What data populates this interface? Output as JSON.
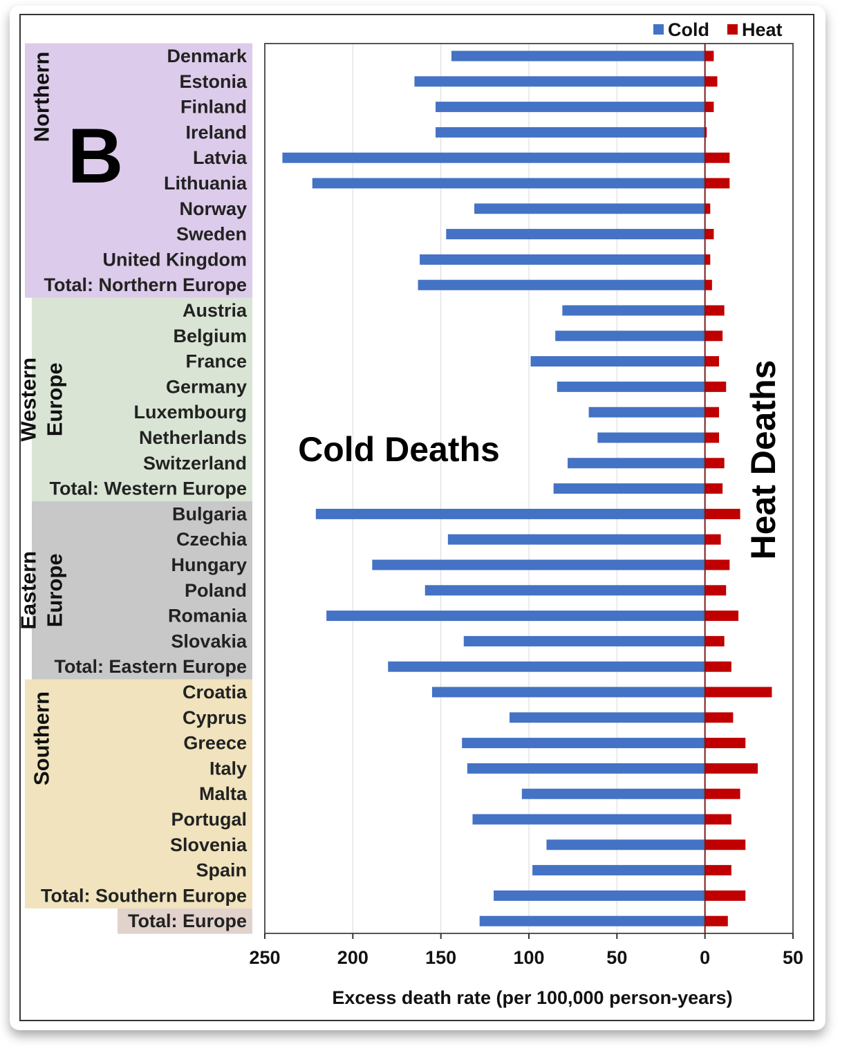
{
  "panel_letter": "B",
  "annotations": {
    "cold": "Cold Deaths",
    "heat": "Heat Deaths"
  },
  "legend": [
    {
      "name": "Cold",
      "color": "#4472c4"
    },
    {
      "name": "Heat",
      "color": "#c00000"
    }
  ],
  "chart_data": {
    "type": "bar",
    "orientation": "horizontal",
    "xlabel": "Excess death rate (per 100,000 person-years)",
    "x_ticks": [
      "250",
      "200",
      "150",
      "100",
      "50",
      "0",
      "50"
    ],
    "xlim": [
      -250,
      50
    ],
    "x_axis_reversed_left_of_zero": true,
    "grid": true,
    "legend_position": "top-right",
    "categories": [
      "Denmark",
      "Estonia",
      "Finland",
      "Ireland",
      "Latvia",
      "Lithuania",
      "Norway",
      "Sweden",
      "United Kingdom",
      "Total: Northern Europe",
      "Austria",
      "Belgium",
      "France",
      "Germany",
      "Luxembourg",
      "Netherlands",
      "Switzerland",
      "Total: Western Europe",
      "Bulgaria",
      "Czechia",
      "Hungary",
      "Poland",
      "Romania",
      "Slovakia",
      "Total: Eastern Europe",
      "Croatia",
      "Cyprus",
      "Greece",
      "Italy",
      "Malta",
      "Portugal",
      "Slovenia",
      "Spain",
      "Total: Southern Europe",
      "Total: Europe"
    ],
    "series": [
      {
        "name": "Cold",
        "color": "#4472c4",
        "values": [
          144,
          165,
          153,
          153,
          240,
          223,
          131,
          147,
          162,
          163,
          81,
          85,
          99,
          84,
          66,
          61,
          78,
          86,
          221,
          146,
          189,
          159,
          215,
          137,
          180,
          155,
          111,
          138,
          135,
          104,
          132,
          90,
          98,
          120,
          128
        ]
      },
      {
        "name": "Heat",
        "color": "#c00000",
        "values": [
          5,
          7,
          5,
          1,
          14,
          14,
          3,
          5,
          3,
          4,
          11,
          10,
          8,
          12,
          8,
          8,
          11,
          10,
          20,
          9,
          14,
          12,
          19,
          11,
          15,
          38,
          16,
          23,
          30,
          20,
          15,
          23,
          15,
          23,
          13
        ]
      }
    ],
    "groups": [
      {
        "label": "Northern",
        "lines": [
          "Northern"
        ],
        "start": 0,
        "end": 9,
        "color": "#dccbea"
      },
      {
        "label": "Western Europe",
        "lines": [
          "Western",
          "Europe"
        ],
        "start": 10,
        "end": 17,
        "color": "#d9e4d4"
      },
      {
        "label": "Eastern Europe",
        "lines": [
          "Eastern",
          "Europe"
        ],
        "start": 18,
        "end": 24,
        "color": "#c8c8c8"
      },
      {
        "label": "Southern",
        "lines": [
          "Southern"
        ],
        "start": 25,
        "end": 33,
        "color": "#f0e3bd"
      },
      {
        "label": "",
        "lines": [],
        "start": 34,
        "end": 34,
        "color": "#e2d2cc"
      }
    ]
  }
}
